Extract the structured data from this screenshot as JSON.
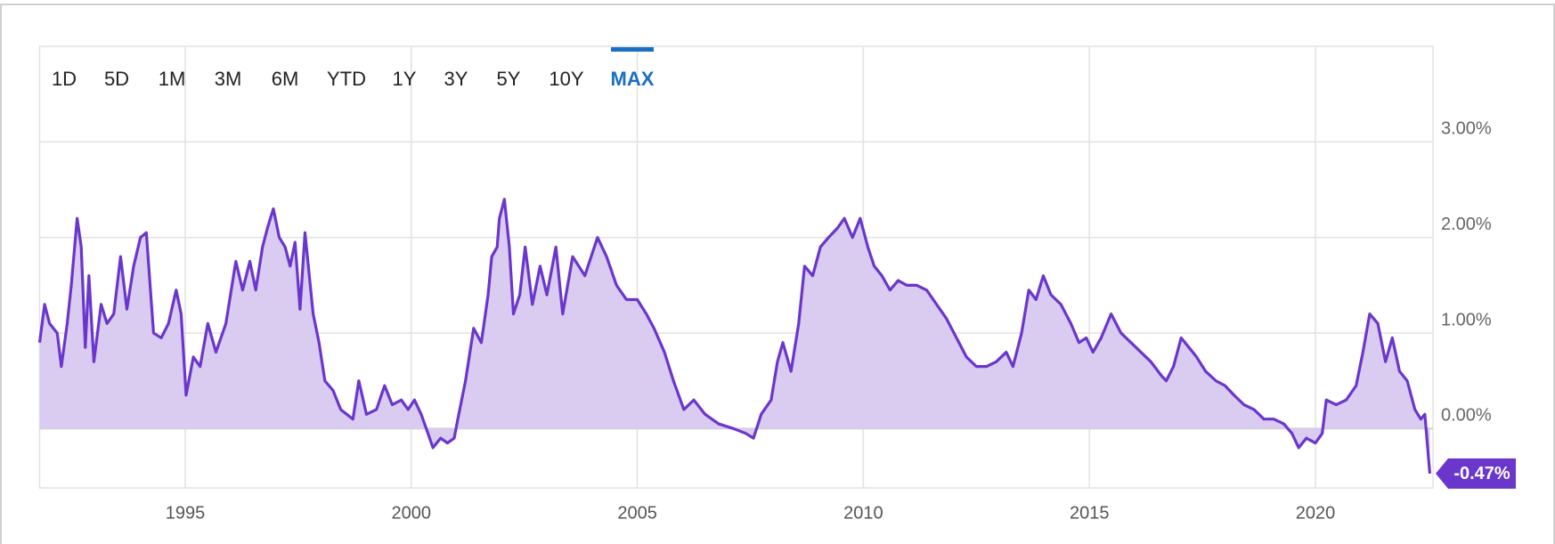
{
  "chart_data": {
    "type": "area",
    "range_buttons": [
      "1D",
      "5D",
      "1M",
      "3M",
      "6M",
      "YTD",
      "1Y",
      "3Y",
      "5Y",
      "10Y",
      "MAX"
    ],
    "selected_button": 10,
    "x": [
      1991.78,
      1991.89,
      1992.0,
      1992.17,
      1992.26,
      1992.39,
      1992.48,
      1992.61,
      1992.7,
      1992.79,
      1992.87,
      1992.98,
      1993.14,
      1993.27,
      1993.42,
      1993.57,
      1993.71,
      1993.86,
      1994.01,
      1994.14,
      1994.3,
      1994.47,
      1994.63,
      1994.8,
      1994.91,
      1995.02,
      1995.18,
      1995.33,
      1995.5,
      1995.68,
      1995.9,
      1996.12,
      1996.27,
      1996.43,
      1996.56,
      1996.71,
      1996.82,
      1996.95,
      1997.08,
      1997.21,
      1997.32,
      1997.43,
      1997.54,
      1997.65,
      1997.83,
      1997.96,
      1998.09,
      1998.27,
      1998.44,
      1998.71,
      1998.84,
      1999.01,
      1999.23,
      1999.41,
      1999.58,
      1999.78,
      1999.93,
      2000.07,
      2000.22,
      2000.37,
      2000.48,
      2000.65,
      2000.8,
      2000.95,
      2001.03,
      2001.2,
      2001.38,
      2001.55,
      2001.7,
      2001.78,
      2001.9,
      2001.95,
      2002.06,
      2002.17,
      2002.26,
      2002.4,
      2002.52,
      2002.68,
      2002.85,
      2003.0,
      2003.2,
      2003.35,
      2003.57,
      2003.84,
      2004.12,
      2004.32,
      2004.54,
      2004.76,
      2005.0,
      2005.2,
      2005.37,
      2005.6,
      2005.8,
      2006.03,
      2006.25,
      2006.5,
      2006.8,
      2007.13,
      2007.4,
      2007.57,
      2007.74,
      2007.96,
      2008.1,
      2008.22,
      2008.4,
      2008.57,
      2008.7,
      2008.88,
      2009.05,
      2009.23,
      2009.43,
      2009.58,
      2009.76,
      2009.93,
      2010.1,
      2010.24,
      2010.41,
      2010.59,
      2010.77,
      2010.96,
      2011.18,
      2011.4,
      2011.62,
      2011.84,
      2012.06,
      2012.28,
      2012.5,
      2012.72,
      2012.94,
      2013.16,
      2013.31,
      2013.5,
      2013.66,
      2013.82,
      2013.98,
      2014.15,
      2014.37,
      2014.59,
      2014.77,
      2014.93,
      2015.08,
      2015.26,
      2015.48,
      2015.7,
      2015.92,
      2016.14,
      2016.36,
      2016.6,
      2016.7,
      2016.86,
      2017.03,
      2017.2,
      2017.37,
      2017.57,
      2017.8,
      2018.0,
      2018.2,
      2018.42,
      2018.64,
      2018.86,
      2019.08,
      2019.3,
      2019.48,
      2019.63,
      2019.8,
      2020.0,
      2020.15,
      2020.24,
      2020.46,
      2020.68,
      2020.9,
      2021.05,
      2021.2,
      2021.38,
      2021.55,
      2021.7,
      2021.86,
      2022.03,
      2022.2,
      2022.33,
      2022.42,
      2022.53
    ],
    "values": [
      0.9,
      1.3,
      1.1,
      1.0,
      0.65,
      1.1,
      1.5,
      2.2,
      1.9,
      0.85,
      1.6,
      0.7,
      1.3,
      1.1,
      1.2,
      1.8,
      1.25,
      1.7,
      2.0,
      2.05,
      1.0,
      0.95,
      1.1,
      1.45,
      1.2,
      0.35,
      0.75,
      0.65,
      1.1,
      0.8,
      1.1,
      1.75,
      1.45,
      1.75,
      1.45,
      1.9,
      2.1,
      2.3,
      2.0,
      1.9,
      1.7,
      1.95,
      1.25,
      2.05,
      1.2,
      0.9,
      0.5,
      0.4,
      0.2,
      0.1,
      0.5,
      0.15,
      0.2,
      0.45,
      0.25,
      0.3,
      0.2,
      0.3,
      0.15,
      -0.05,
      -0.2,
      -0.1,
      -0.15,
      -0.1,
      0.1,
      0.5,
      1.05,
      0.9,
      1.4,
      1.8,
      1.9,
      2.2,
      2.4,
      1.9,
      1.2,
      1.4,
      1.9,
      1.3,
      1.7,
      1.4,
      1.9,
      1.2,
      1.8,
      1.6,
      2.0,
      1.8,
      1.5,
      1.35,
      1.35,
      1.2,
      1.05,
      0.8,
      0.5,
      0.2,
      0.3,
      0.15,
      0.05,
      0.0,
      -0.05,
      -0.1,
      0.15,
      0.3,
      0.7,
      0.9,
      0.6,
      1.1,
      1.7,
      1.6,
      1.9,
      2.0,
      2.1,
      2.2,
      2.0,
      2.2,
      1.9,
      1.7,
      1.6,
      1.45,
      1.55,
      1.5,
      1.5,
      1.45,
      1.3,
      1.15,
      0.95,
      0.75,
      0.65,
      0.65,
      0.7,
      0.8,
      0.65,
      1.0,
      1.45,
      1.35,
      1.6,
      1.4,
      1.3,
      1.1,
      0.9,
      0.95,
      0.8,
      0.95,
      1.2,
      1.0,
      0.9,
      0.8,
      0.7,
      0.55,
      0.5,
      0.65,
      0.95,
      0.85,
      0.75,
      0.6,
      0.5,
      0.45,
      0.35,
      0.25,
      0.2,
      0.1,
      0.1,
      0.05,
      -0.05,
      -0.2,
      -0.1,
      -0.15,
      -0.05,
      0.3,
      0.25,
      0.3,
      0.45,
      0.8,
      1.2,
      1.1,
      0.7,
      0.95,
      0.6,
      0.5,
      0.2,
      0.1,
      0.15,
      -0.47
    ],
    "value_labels": [
      null,
      null,
      null,
      null,
      null,
      null,
      null,
      null,
      null,
      null,
      null,
      null,
      null,
      null,
      null,
      null,
      null,
      null,
      null,
      null,
      null,
      null,
      null,
      null,
      null,
      null,
      null,
      null,
      null,
      null,
      null,
      null,
      null,
      null,
      null,
      null,
      null,
      null,
      null,
      null,
      null,
      null,
      null,
      null,
      null,
      null,
      null,
      null,
      null,
      null,
      null,
      null,
      null,
      null,
      null,
      null,
      null,
      null,
      null,
      null,
      null,
      null,
      null,
      null,
      null,
      null,
      null,
      null,
      null,
      null,
      null,
      null,
      null,
      null,
      null,
      null,
      null,
      null,
      null,
      null,
      null,
      null,
      null,
      null,
      null,
      null,
      null,
      null,
      null,
      null,
      null,
      null,
      null,
      null,
      null,
      null,
      null,
      null,
      null,
      null,
      null,
      null,
      null,
      null,
      null,
      null,
      null,
      null,
      null,
      null,
      null,
      null,
      null,
      null,
      null,
      null,
      null,
      null,
      null,
      null,
      null,
      null,
      null,
      null,
      null,
      null,
      null,
      null,
      null,
      null,
      null,
      null,
      null,
      null,
      null,
      null,
      null,
      null,
      null,
      null,
      null,
      null,
      null,
      null,
      null,
      null,
      null,
      null,
      null,
      null,
      null,
      null,
      null,
      null,
      null,
      null,
      null,
      null,
      null,
      null,
      null,
      null,
      null,
      null,
      null,
      null,
      null,
      null,
      null,
      null,
      null,
      null,
      null,
      null,
      null,
      null,
      null,
      null,
      null,
      null,
      null,
      "-0.47%"
    ],
    "color": "#6a36cc",
    "fill_color": "#dacbf1",
    "xlim": [
      1991.78,
      2022.6
    ],
    "xticks": [
      1995,
      2000,
      2005,
      2010,
      2015,
      2020
    ],
    "ylim": [
      -0.62,
      4.0
    ],
    "yticks": [
      {
        "value": 0,
        "label": "0.00%"
      },
      {
        "value": 1,
        "label": "1.00%"
      },
      {
        "value": 2,
        "label": "2.00%"
      },
      {
        "value": 3,
        "label": "3.00%"
      }
    ],
    "grid": true
  }
}
